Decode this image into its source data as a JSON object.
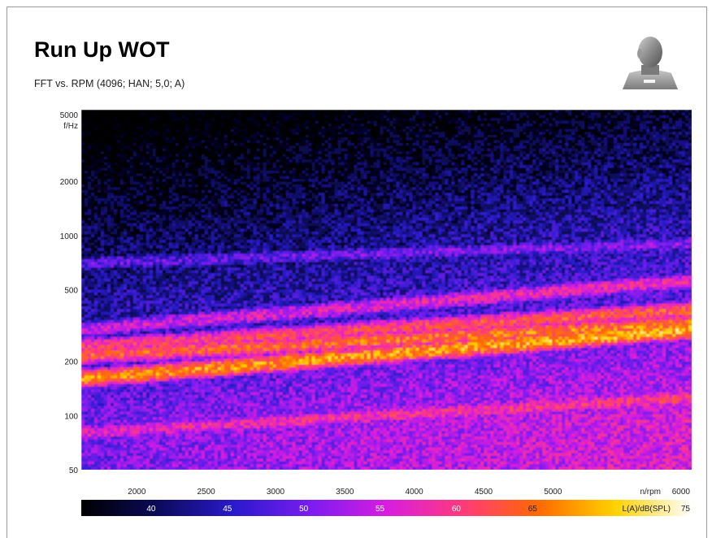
{
  "header": {
    "title": "Run Up WOT",
    "subtitle": "FFT vs. RPM (4096; HAN; 5,0; A)"
  },
  "logo": {
    "icon": "artificial-head-icon"
  },
  "chart_data": {
    "type": "heatmap",
    "title": "Run Up WOT",
    "subtitle": "FFT vs. RPM (4096; HAN; 5,0; A)",
    "xlabel": "n/rpm",
    "ylabel": "f/Hz",
    "x_range": [
      1600,
      6000
    ],
    "y_range": [
      50,
      5000
    ],
    "y_scale": "log",
    "x_ticks": [
      2000,
      2500,
      3000,
      3500,
      4000,
      4500,
      5000,
      6000
    ],
    "y_ticks": [
      50,
      100,
      200,
      500,
      1000,
      2000,
      5000
    ],
    "colorbar": {
      "label": "L(A)/dB(SPL)",
      "ticks": [
        40,
        45,
        50,
        55,
        60,
        65,
        75
      ],
      "range": [
        35,
        75
      ],
      "colors": [
        "#000000",
        "#0b0a5a",
        "#2a1acc",
        "#7a1cf0",
        "#d81de0",
        "#ff3a7a",
        "#ff6a00",
        "#ffd200",
        "#ffffff"
      ]
    },
    "order_tracks": [
      {
        "f_at_1600": 80,
        "f_at_6000": 125,
        "level": 57
      },
      {
        "f_at_1600": 160,
        "f_at_6000": 300,
        "level": 66
      },
      {
        "f_at_1600": 215,
        "f_at_6000": 320,
        "level": 63
      },
      {
        "f_at_1600": 240,
        "f_at_6000": 385,
        "level": 60
      },
      {
        "f_at_1600": 300,
        "f_at_6000": 560,
        "level": 55
      },
      {
        "f_at_1600": 700,
        "f_at_6000": 900,
        "level": 48
      }
    ]
  }
}
